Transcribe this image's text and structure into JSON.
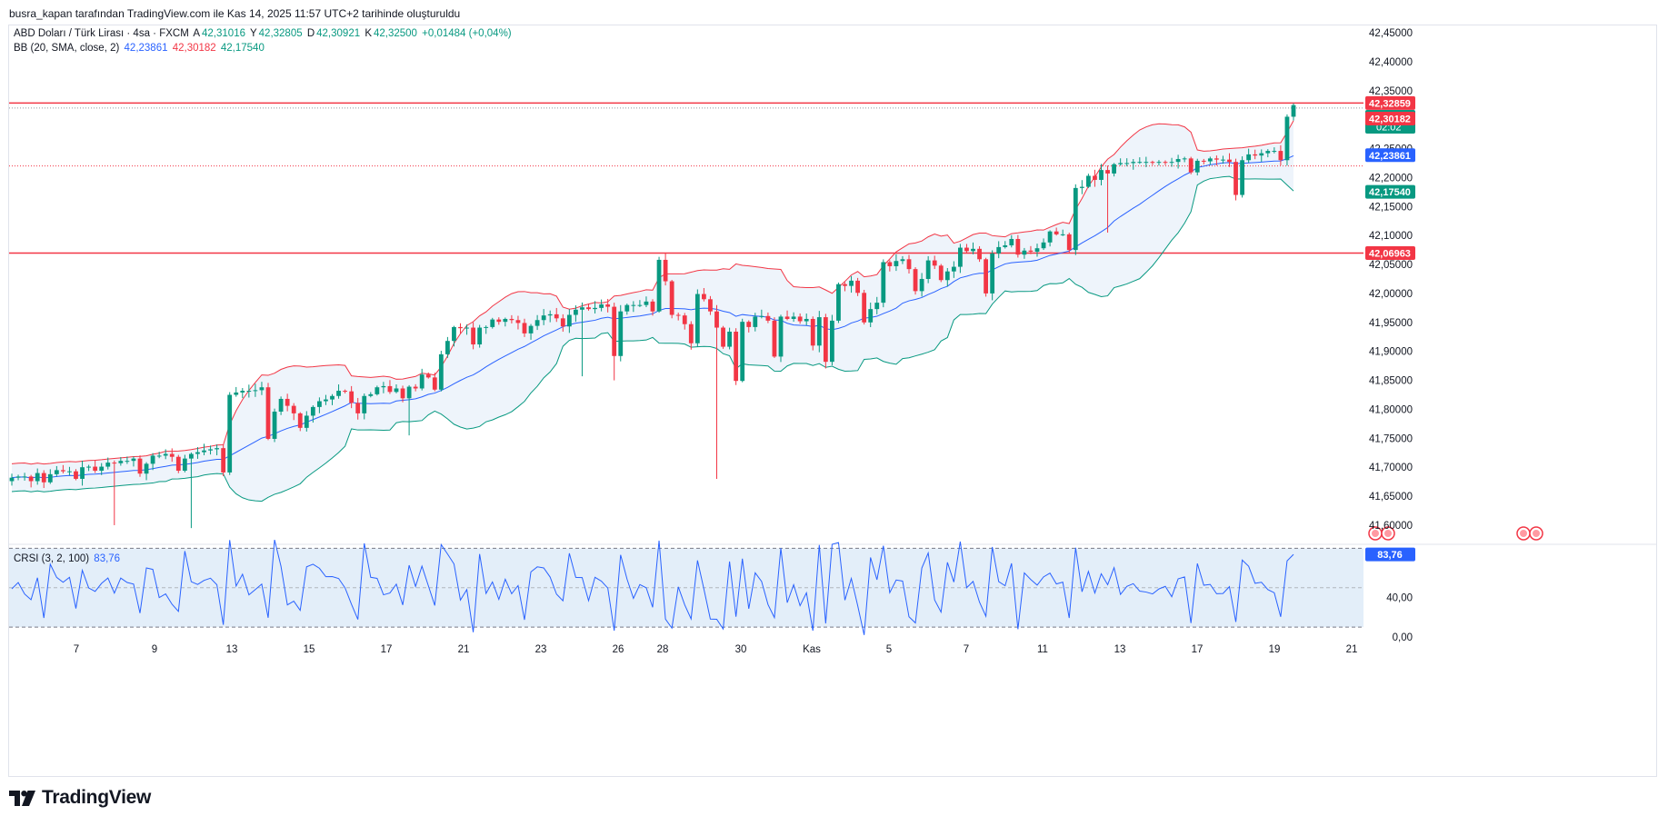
{
  "header": {
    "caption": "busra_kapan tarafından TradingView.com ile Kas 14, 2025 11:57 UTC+2 tarihinde oluşturuldu"
  },
  "legend": {
    "symbol": "ABD Doları / Türk Lirası · 4sa · FXCM",
    "o_label": "A",
    "o": "42,31016",
    "h_label": "Y",
    "h": "42,32805",
    "l_label": "D",
    "l": "42,30921",
    "c_label": "K",
    "c": "42,32500",
    "change": "+0,01484 (+0,04%)",
    "bb_name": "BB (20, SMA, close, 2)",
    "bb_basis": "42,23861",
    "bb_upper": "42,30182",
    "bb_lower": "42,17540",
    "crsi_name": "CRSI (3, 2, 100)",
    "crsi_value": "83,76"
  },
  "branding": {
    "logo_text": "TradingView"
  },
  "colors": {
    "up": "#089981",
    "down": "#f23645",
    "bb_basis": "#2962ff",
    "bb_upper": "#f23645",
    "bb_lower": "#089981",
    "bb_fill": "#eef4fb",
    "hline": "#f23645",
    "crsi_line": "#2962ff",
    "crsi_band": "#e3eef9",
    "axis_text": "#131722",
    "muted": "#787b86"
  },
  "chart_data": {
    "type": "candlestick",
    "symbol": "USDTRY",
    "timeframe": "4sa",
    "ylim": [
      41.56,
      42.47
    ],
    "y_ticks": [
      "42,45000",
      "42,40000",
      "42,35000",
      "42,30000",
      "42,25000",
      "42,20000",
      "42,15000",
      "42,10000",
      "42,05000",
      "42,00000",
      "41,95000",
      "41,90000",
      "41,85000",
      "41,80000",
      "41,75000",
      "41,70000",
      "41,65000",
      "41,60000"
    ],
    "x_ticks": [
      "7",
      "9",
      "13",
      "15",
      "17",
      "21",
      "23",
      "26",
      "28",
      "30",
      "Kas",
      "5",
      "7",
      "11",
      "13",
      "17",
      "19",
      "21"
    ],
    "horizontal_lines": [
      42.32859,
      42.06963
    ],
    "price_labels": [
      {
        "text": "42,32859",
        "value": 42.32859,
        "style": "red"
      },
      {
        "text": "42,32500",
        "sub": "02:02",
        "value": 42.305,
        "style": "green"
      },
      {
        "text": "42,30182",
        "value": 42.30182,
        "style": "red"
      },
      {
        "text": "42,23861",
        "value": 42.23861,
        "style": "blue"
      },
      {
        "text": "42,17540",
        "value": 42.1754,
        "style": "green"
      },
      {
        "text": "42,06963",
        "value": 42.06963,
        "style": "red"
      }
    ],
    "closes": [
      41.682,
      41.684,
      41.684,
      41.676,
      41.69,
      41.674,
      41.688,
      41.695,
      41.693,
      41.693,
      41.68,
      41.7,
      41.701,
      41.694,
      41.701,
      41.708,
      41.707,
      41.711,
      41.711,
      41.715,
      41.689,
      41.706,
      41.72,
      41.72,
      41.723,
      41.718,
      41.694,
      41.715,
      41.723,
      41.726,
      41.729,
      41.731,
      41.733,
      41.691,
      41.825,
      41.829,
      41.832,
      41.832,
      41.833,
      41.838,
      41.749,
      41.796,
      41.818,
      41.806,
      41.793,
      41.768,
      41.789,
      41.804,
      41.814,
      41.817,
      41.823,
      41.832,
      41.831,
      41.811,
      41.793,
      41.823,
      41.826,
      41.838,
      41.84,
      41.83,
      41.836,
      41.819,
      41.839,
      41.836,
      41.86,
      41.855,
      41.834,
      41.895,
      41.918,
      41.942,
      41.94,
      41.941,
      41.912,
      41.941,
      41.942,
      41.955,
      41.951,
      41.956,
      41.954,
      41.949,
      41.931,
      41.944,
      41.954,
      41.962,
      41.964,
      41.957,
      41.943,
      41.963,
      41.972,
      41.976,
      41.973,
      41.975,
      41.981,
      41.977,
      41.892,
      41.969,
      41.98,
      41.98,
      41.98,
      41.986,
      41.969,
      42.058,
      42.021,
      41.963,
      41.962,
      41.947,
      41.914,
      41.999,
      41.99,
      41.969,
      41.941,
      41.908,
      41.934,
      41.849,
      41.951,
      41.942,
      41.96,
      41.961,
      41.953,
      41.891,
      41.96,
      41.956,
      41.96,
      41.952,
      41.956,
      41.91,
      41.959,
      41.882,
      41.953,
      42.016,
      42.013,
      42.022,
      42.001,
      41.95,
      41.973,
      41.984,
      42.054,
      42.047,
      42.056,
      42.059,
      42.042,
      42.004,
      42.025,
      42.057,
      42.048,
      42.023,
      42.038,
      42.046,
      42.079,
      42.073,
      42.077,
      42.059,
      42.0,
      42.069,
      42.08,
      42.083,
      42.094,
      42.067,
      42.074,
      42.072,
      42.078,
      42.088,
      42.107,
      42.102,
      42.102,
      42.075,
      42.182,
      42.184,
      42.203,
      42.196,
      42.213,
      42.207,
      42.223,
      42.225,
      42.225,
      42.227,
      42.227,
      42.227,
      42.226,
      42.227,
      42.226,
      42.227,
      42.232,
      42.233,
      42.209,
      42.229,
      42.228,
      42.233,
      42.231,
      42.231,
      42.227,
      42.17,
      42.23,
      42.24,
      42.238,
      42.242,
      42.246,
      42.246,
      42.23,
      42.305,
      42.325
    ]
  }
}
